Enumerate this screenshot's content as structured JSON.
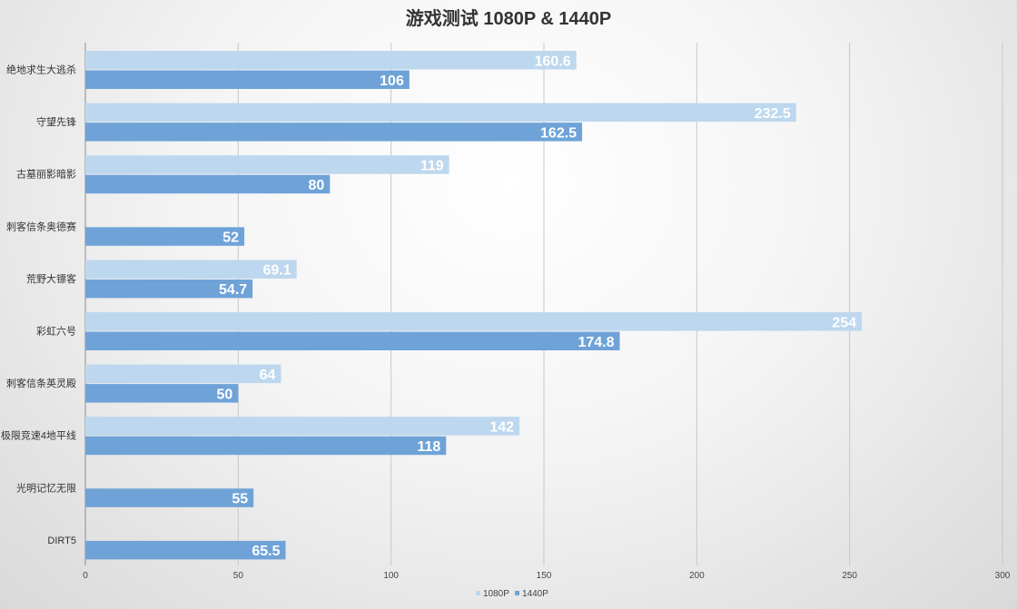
{
  "chart_data": {
    "type": "bar",
    "orientation": "horizontal",
    "title": "游戏测试 1080P & 1440P",
    "categories": [
      "绝地求生大逃杀",
      "守望先锋",
      "古墓丽影暗影",
      "刺客信条奥德赛",
      "荒野大镖客",
      "彩虹六号",
      "刺客信条英灵殿",
      "极限竞速4地平线",
      "光明记忆无限",
      "DIRT5"
    ],
    "series": [
      {
        "name": "1080P",
        "color": "#bdd7ee",
        "values": [
          160.6,
          232.5,
          119,
          null,
          69.1,
          254,
          64,
          142,
          null,
          null
        ]
      },
      {
        "name": "1440P",
        "color": "#6fa3d8",
        "values": [
          106,
          162.5,
          80,
          52,
          54.7,
          174.8,
          50,
          118,
          55,
          65.5
        ]
      }
    ],
    "xlim": [
      0,
      300
    ],
    "xticks": [
      "0",
      "50",
      "100",
      "150",
      "200",
      "250",
      "300"
    ],
    "grid": true,
    "legend_position": "bottom"
  }
}
